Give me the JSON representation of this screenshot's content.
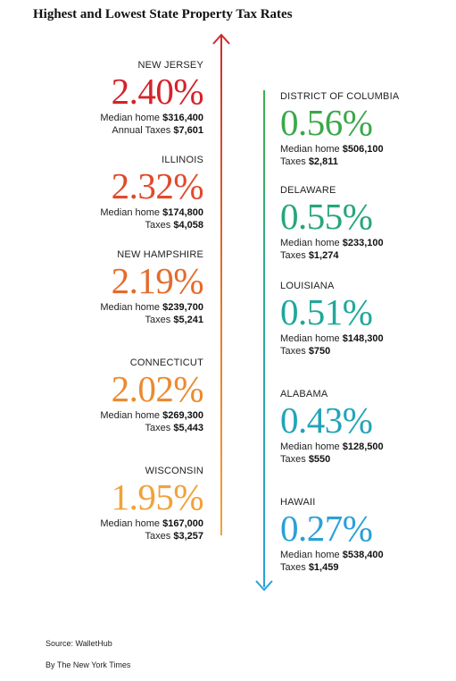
{
  "title": "Highest and Lowest State Property Tax Rates",
  "highest": [
    {
      "state": "NEW JERSEY",
      "rate": "2.40%",
      "color": "#d4232a",
      "home_label": "Median home",
      "home_value": "$316,400",
      "tax_label": "Annual Taxes",
      "tax_value": "$7,601"
    },
    {
      "state": "ILLINOIS",
      "rate": "2.32%",
      "color": "#e04a2c",
      "home_label": "Median home",
      "home_value": "$174,800",
      "tax_label": "Taxes",
      "tax_value": "$4,058"
    },
    {
      "state": "NEW HAMPSHIRE",
      "rate": "2.19%",
      "color": "#e56b2c",
      "home_label": "Median home",
      "home_value": "$239,700",
      "tax_label": "Taxes",
      "tax_value": "$5,241"
    },
    {
      "state": "CONNECTICUT",
      "rate": "2.02%",
      "color": "#ec8a30",
      "home_label": "Median home",
      "home_value": "$269,300",
      "tax_label": "Taxes",
      "tax_value": "$5,443"
    },
    {
      "state": "WISCONSIN",
      "rate": "1.95%",
      "color": "#f0a23a",
      "home_label": "Median home",
      "home_value": "$167,000",
      "tax_label": "Taxes",
      "tax_value": "$3,257"
    }
  ],
  "lowest": [
    {
      "state": "DISTRICT OF COLUMBIA",
      "rate": "0.56%",
      "color": "#3aa84a",
      "home_label": "Median home",
      "home_value": "$506,100",
      "tax_label": "Taxes",
      "tax_value": "$2,811"
    },
    {
      "state": "DELAWARE",
      "rate": "0.55%",
      "color": "#26a67a",
      "home_label": "Median home",
      "home_value": "$233,100",
      "tax_label": "Taxes",
      "tax_value": "$1,274"
    },
    {
      "state": "LOUISIANA",
      "rate": "0.51%",
      "color": "#1fa89a",
      "home_label": "Median home",
      "home_value": "$148,300",
      "tax_label": "Taxes",
      "tax_value": "$750"
    },
    {
      "state": "ALABAMA",
      "rate": "0.43%",
      "color": "#22a4b8",
      "home_label": "Median home",
      "home_value": "$128,500",
      "tax_label": "Taxes",
      "tax_value": "$550"
    },
    {
      "state": "HAWAII",
      "rate": "0.27%",
      "color": "#2aa0d8",
      "home_label": "Median home",
      "home_value": "$538,400",
      "tax_label": "Taxes",
      "tax_value": "$1,459"
    }
  ],
  "source": "Source: WalletHub",
  "byline": "By The New York Times",
  "arrow_up_color": "#cf2a2a",
  "arrow_down_color": "#2aa0d8"
}
